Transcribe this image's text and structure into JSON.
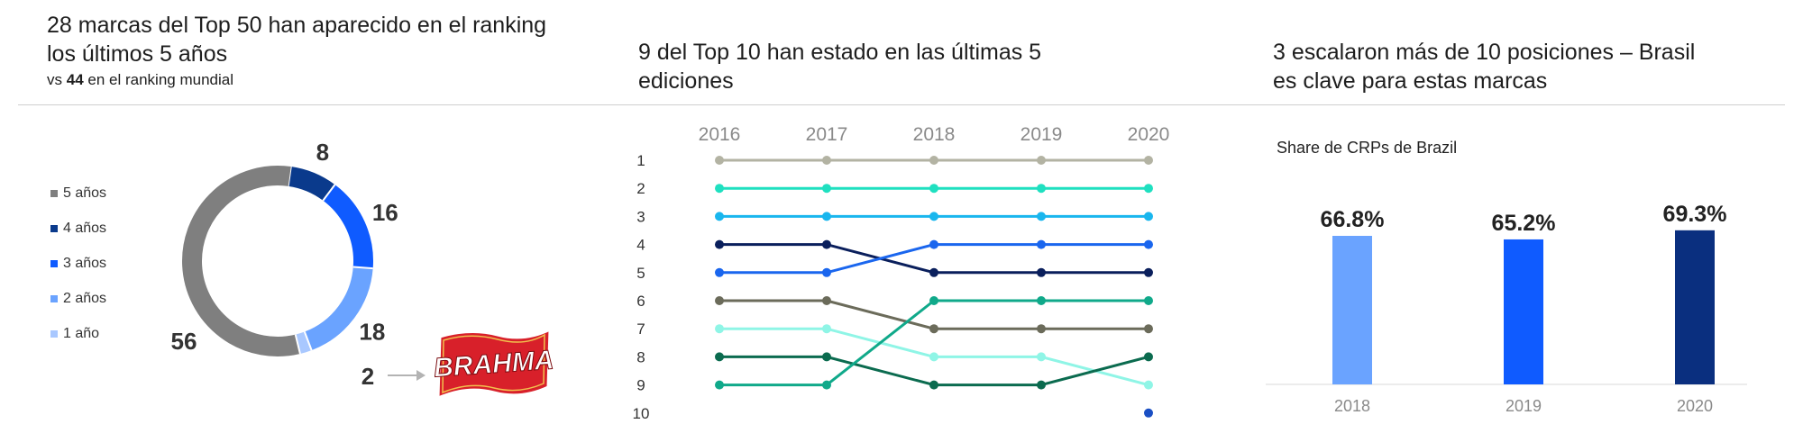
{
  "headers": {
    "left": "28 marcas del Top 50 han aparecido en el ranking los últimos 5 años",
    "left_sub_pre": "vs",
    "left_sub_bold": "44",
    "left_sub_post": "en el ranking mundial",
    "middle": "9 del Top 10 han estado en las últimas 5 ediciones",
    "right": "3 escalaron más de 10 posiciones – Brasil es clave para estas marcas"
  },
  "logo_text": "BRAHMA",
  "chart_data": [
    {
      "type": "pie",
      "categories": [
        "5 años",
        "4 años",
        "3 años",
        "2 años",
        "1 año"
      ],
      "values": [
        56,
        8,
        16,
        18,
        2
      ],
      "colors": [
        "#7f7f7f",
        "#0a3a8c",
        "#0f5bff",
        "#6aa3ff",
        "#a9c8ff"
      ],
      "legend_position": "left",
      "callout_label": "2"
    },
    {
      "type": "line",
      "x": [
        "2016",
        "2017",
        "2018",
        "2019",
        "2020"
      ],
      "y_ticks": [
        "1",
        "2",
        "3",
        "4",
        "5",
        "6",
        "7",
        "8",
        "9",
        "10"
      ],
      "y_inverted": true,
      "series": [
        {
          "values": [
            1,
            1,
            1,
            1,
            1
          ],
          "color": "#b3b3a3"
        },
        {
          "values": [
            2,
            2,
            2,
            2,
            2
          ],
          "color": "#1fe0c0"
        },
        {
          "values": [
            3,
            3,
            3,
            3,
            3
          ],
          "color": "#19b6ee"
        },
        {
          "values": [
            4,
            4,
            5,
            5,
            5
          ],
          "color": "#0a1f5c"
        },
        {
          "values": [
            5,
            5,
            4,
            4,
            4
          ],
          "color": "#1a66ee"
        },
        {
          "values": [
            6,
            6,
            7,
            7,
            7
          ],
          "color": "#6b6b5a"
        },
        {
          "values": [
            7,
            7,
            8,
            8,
            9
          ],
          "color": "#8ff5e6"
        },
        {
          "values": [
            8,
            8,
            9,
            9,
            8
          ],
          "color": "#0b6b4f"
        },
        {
          "values": [
            9,
            9,
            6,
            6,
            6
          ],
          "color": "#10a98a"
        },
        {
          "values": [
            null,
            null,
            null,
            null,
            10
          ],
          "color": "#1a4fc4"
        }
      ]
    },
    {
      "type": "bar",
      "title": "Share de CRPs de Brazil",
      "categories": [
        "2018",
        "2019",
        "2020"
      ],
      "values": [
        66.8,
        65.2,
        69.3
      ],
      "value_labels": [
        "66.8%",
        "65.2%",
        "69.3%"
      ],
      "colors": [
        "#6aa3ff",
        "#0f5bff",
        "#0a2f7f"
      ]
    }
  ]
}
